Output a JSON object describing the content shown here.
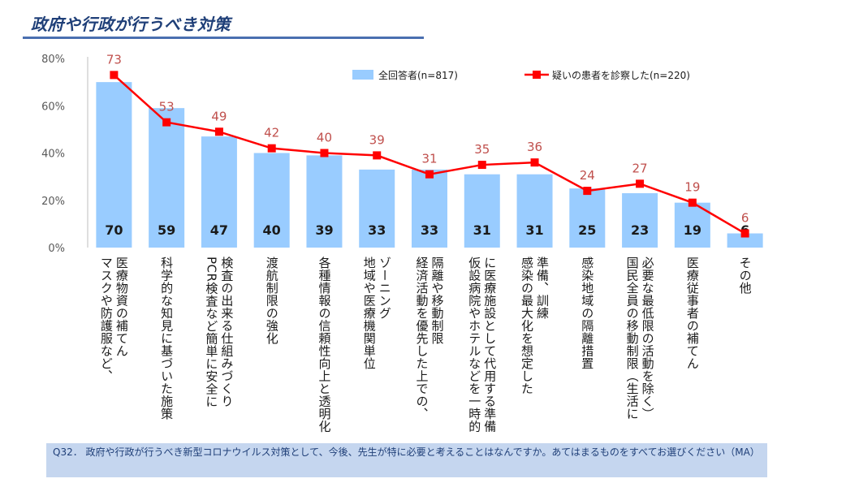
{
  "header": {
    "title": "政府や行政が行うべき対策"
  },
  "chart_data": {
    "type": "bar",
    "title": "政府や行政が行うべき対策",
    "categories": [
      [
        "医療物資の補てん",
        "マスクや防護服など、"
      ],
      [
        "科学的な知見に基づいた施策"
      ],
      [
        "検査の出来る仕組みづくり",
        "PCR検査など簡単に安全に"
      ],
      [
        "渡航制限の強化"
      ],
      [
        "各種情報の信頼性向上と透明化"
      ],
      [
        "ゾーニング",
        "地域や医療機関単位"
      ],
      [
        "隔離や移動制限",
        "経済活動を優先した上での、"
      ],
      [
        "に医療施設として代用する準備",
        "仮設病院やホテルなどを一時的"
      ],
      [
        "準備、訓練",
        "感染の最大化を想定した"
      ],
      [
        "感染地域の隔離措置"
      ],
      [
        "必要な最低限の活動を除く）",
        "国民全員の移動制限（生活に"
      ],
      [
        "医療従事者の補てん"
      ],
      [
        "その他"
      ]
    ],
    "series": [
      {
        "name": "全回答者(n=817)",
        "type": "bar",
        "color": "#99ccff",
        "values": [
          70,
          59,
          47,
          40,
          39,
          33,
          33,
          31,
          31,
          25,
          23,
          19,
          6
        ]
      },
      {
        "name": "疑いの患者を診察した(n=220)",
        "type": "line",
        "color": "#ff0000",
        "values": [
          73,
          53,
          49,
          42,
          40,
          39,
          31,
          35,
          36,
          24,
          27,
          19,
          6
        ]
      }
    ],
    "yticks": [
      "0%",
      "20%",
      "40%",
      "60%",
      "80%"
    ],
    "ylim": [
      0,
      80
    ],
    "legend": "top"
  },
  "colors": {
    "bar": "#99ccff",
    "line": "#ff0000",
    "line_label": "#c0504d",
    "axis_text": "#595959"
  },
  "footer": {
    "question": "Q32． 政府や行政が行うべき新型コロナウイルス対策として、今後、先生が特に必要と考えることはなんですか。あてはまるものをすべてお選びください（MA）"
  }
}
